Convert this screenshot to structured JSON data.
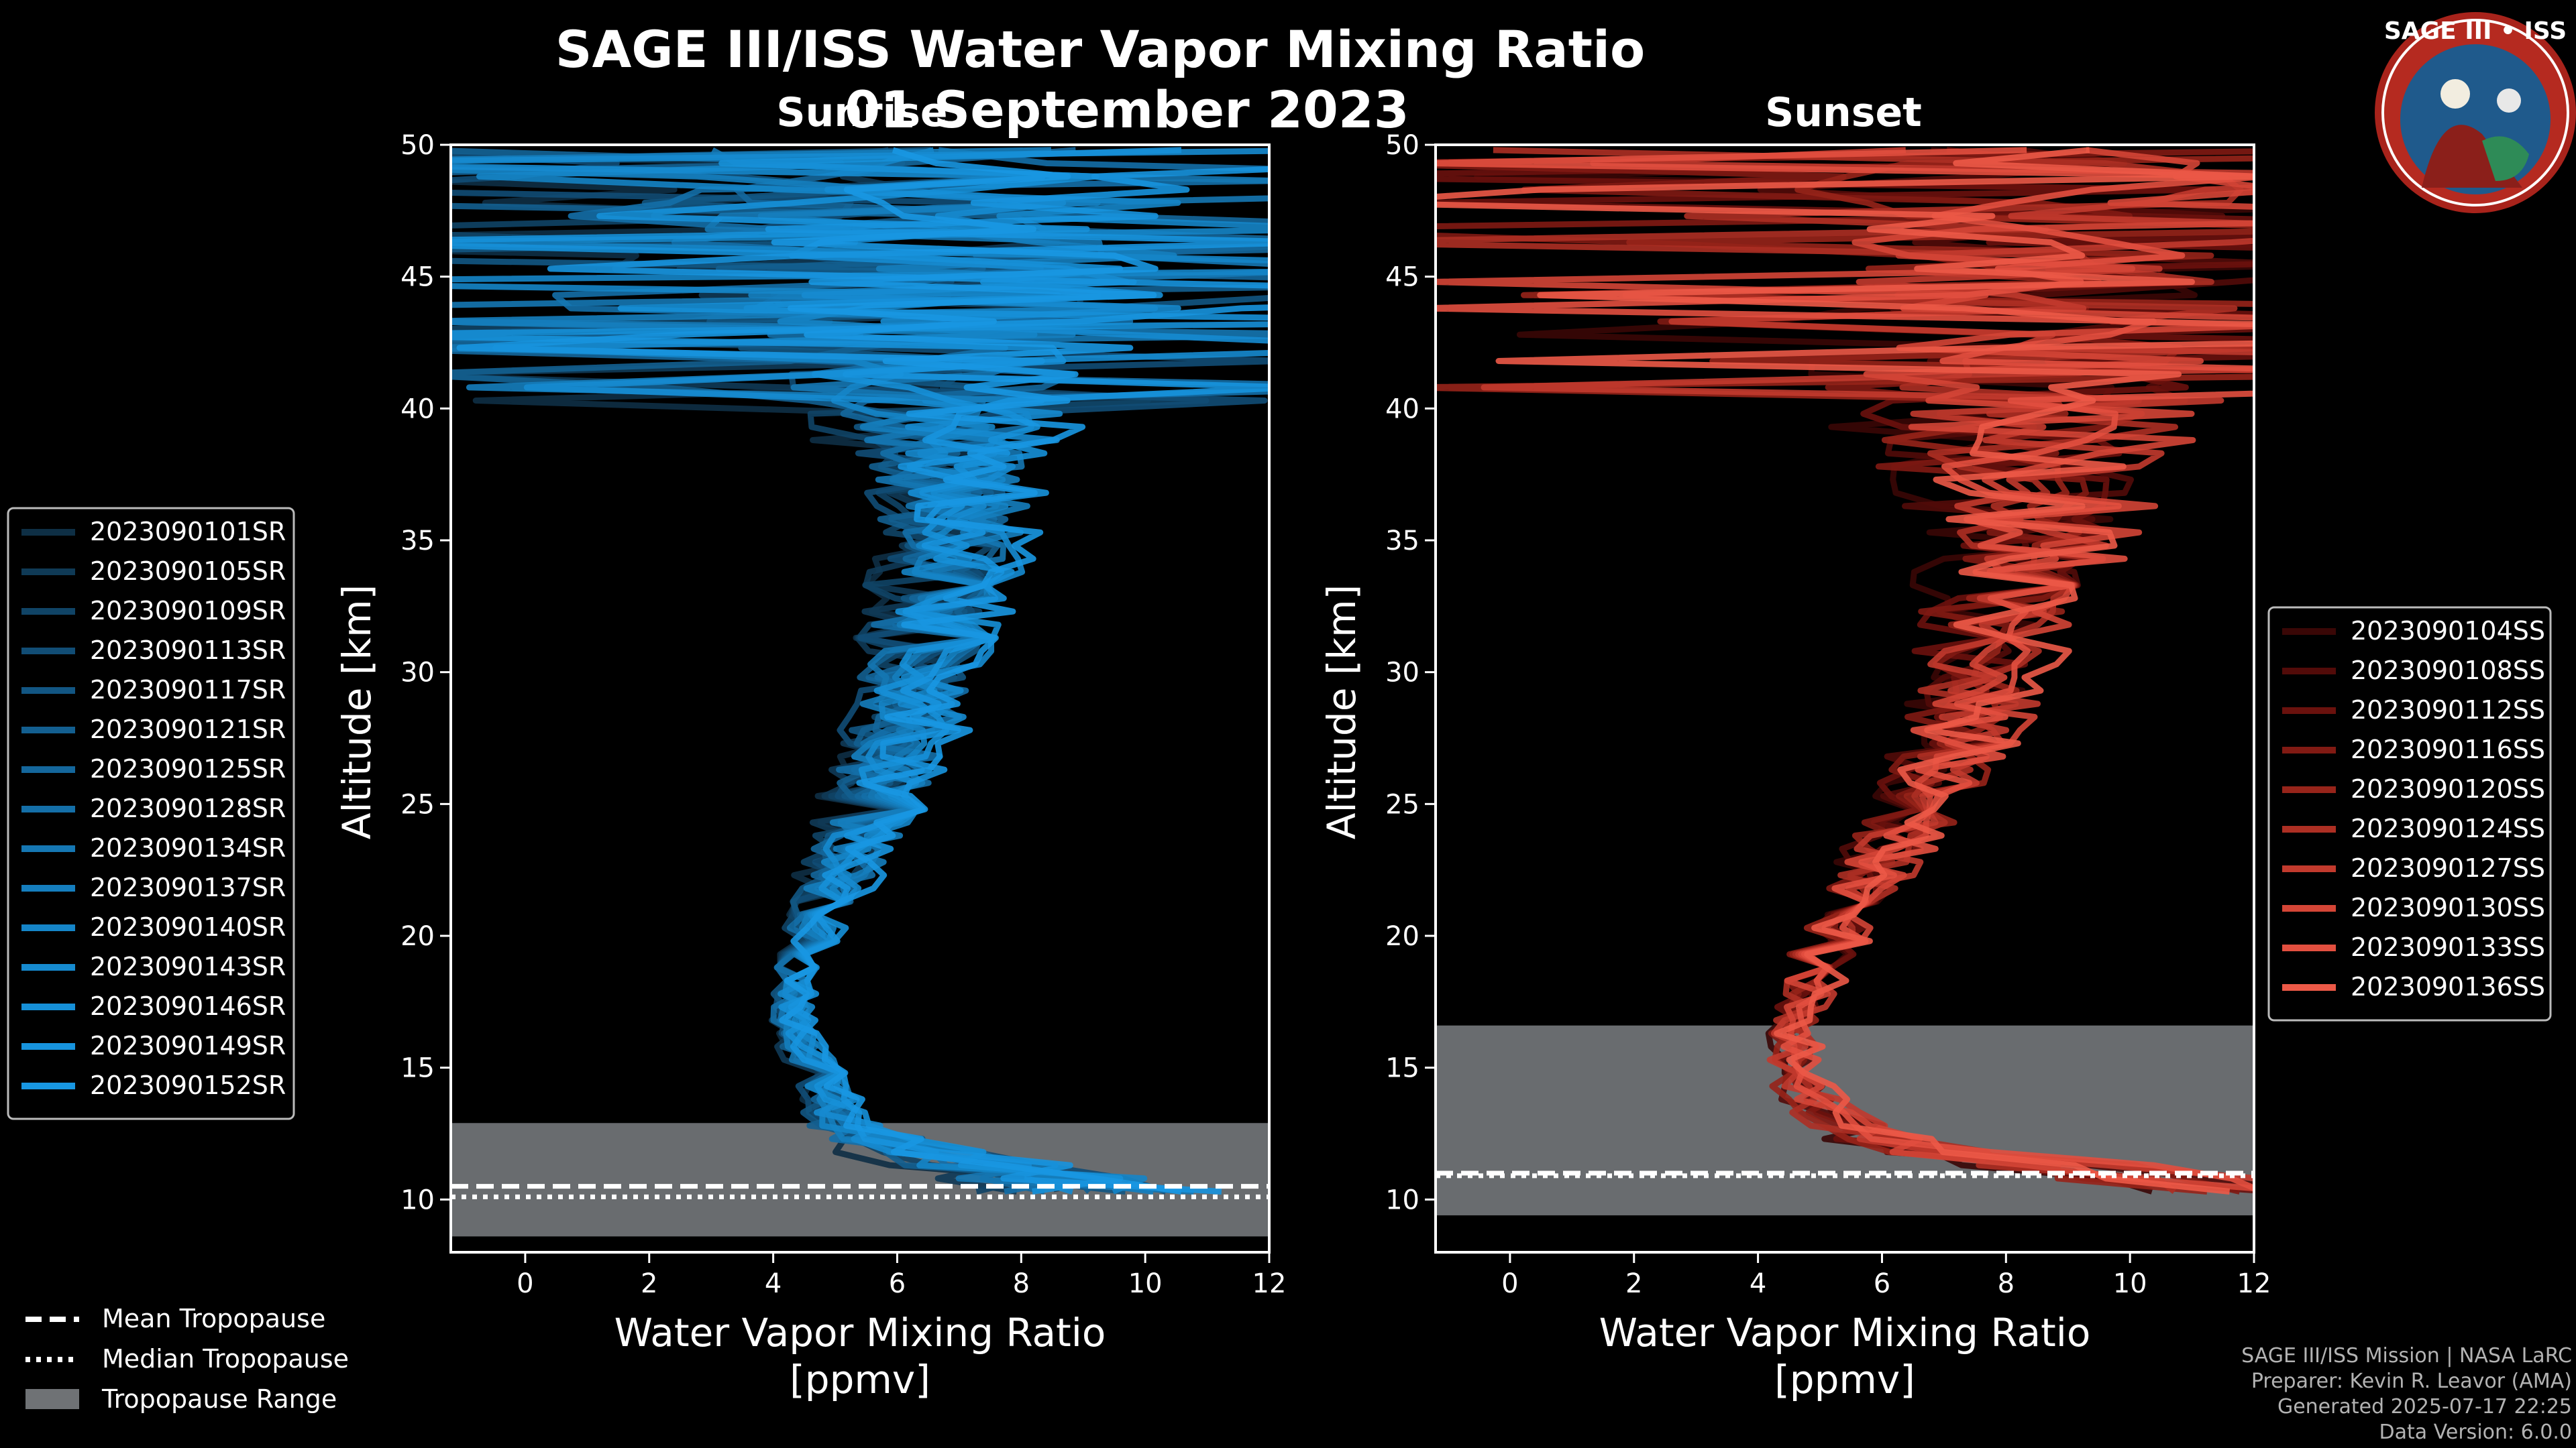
{
  "header": {
    "title": "SAGE III/ISS Water Vapor Mixing Ratio",
    "date": "01 September 2023",
    "left_label": "Sunrise",
    "right_label": "Sunset"
  },
  "logo": {
    "text": "SAGE III • ISS"
  },
  "chart_data": [
    {
      "type": "line",
      "panel": "Sunrise",
      "title": "Sunrise",
      "xlabel": "Water Vapor Mixing Ratio\n[ppmv]",
      "ylabel": "Altitude [km]",
      "xlim": [
        -1.2,
        12
      ],
      "ylim": [
        8,
        50
      ],
      "xticks": [
        0,
        2,
        4,
        6,
        8,
        10,
        12
      ],
      "yticks": [
        10,
        15,
        20,
        25,
        30,
        35,
        40,
        45,
        50
      ],
      "grid": false,
      "legend_position": "left",
      "profile_shape": {
        "altitude": [
          10,
          11,
          12,
          13,
          14,
          15,
          16,
          17,
          18,
          19,
          20,
          22,
          24,
          26,
          28,
          30,
          32,
          34,
          36,
          38,
          40,
          42,
          44,
          46,
          48,
          50
        ],
        "median_ppmv": [
          10.0,
          8.0,
          6.0,
          5.0,
          4.9,
          4.7,
          4.4,
          4.3,
          4.3,
          4.4,
          4.6,
          5.0,
          5.4,
          5.8,
          6.1,
          6.4,
          6.6,
          6.8,
          6.9,
          6.8,
          6.6,
          6.5,
          6.5,
          6.3,
          6.0,
          6.0
        ],
        "spread_ppmv": [
          3.0,
          2.5,
          1.5,
          0.7,
          0.6,
          0.6,
          0.5,
          0.5,
          0.5,
          0.5,
          0.6,
          0.8,
          1.0,
          1.2,
          1.3,
          1.4,
          1.5,
          1.6,
          1.7,
          2.0,
          3.0,
          5.0,
          6.0,
          6.0,
          6.0,
          6.0
        ]
      },
      "series": [
        {
          "name": "2023090101SR",
          "color": "#0e2f45"
        },
        {
          "name": "2023090105SR",
          "color": "#0f3a56"
        },
        {
          "name": "2023090109SR",
          "color": "#104466"
        },
        {
          "name": "2023090113SR",
          "color": "#114d75"
        },
        {
          "name": "2023090117SR",
          "color": "#125683"
        },
        {
          "name": "2023090121SR",
          "color": "#135f90"
        },
        {
          "name": "2023090125SR",
          "color": "#14679c"
        },
        {
          "name": "2023090128SR",
          "color": "#146fa8"
        },
        {
          "name": "2023090134SR",
          "color": "#1577b3"
        },
        {
          "name": "2023090137SR",
          "color": "#157ebe"
        },
        {
          "name": "2023090140SR",
          "color": "#1585c8"
        },
        {
          "name": "2023090143SR",
          "color": "#168bd0"
        },
        {
          "name": "2023090146SR",
          "color": "#1690d8"
        },
        {
          "name": "2023090149SR",
          "color": "#1794de"
        },
        {
          "name": "2023090152SR",
          "color": "#1897e2"
        }
      ],
      "tropopause": {
        "mean_km": 10.5,
        "median_km": 10.1,
        "range_km": [
          8.6,
          12.9
        ]
      },
      "legend2": [
        "Mean Tropopause",
        "Median Tropopause",
        "Tropopause Range"
      ]
    },
    {
      "type": "line",
      "panel": "Sunset",
      "title": "Sunset",
      "xlabel": "Water Vapor Mixing Ratio\n[ppmv]",
      "ylabel": "Altitude [km]",
      "xlim": [
        -1.2,
        12
      ],
      "ylim": [
        8,
        50
      ],
      "xticks": [
        0,
        2,
        4,
        6,
        8,
        10,
        12
      ],
      "yticks": [
        10,
        15,
        20,
        25,
        30,
        35,
        40,
        45,
        50
      ],
      "grid": false,
      "legend_position": "right",
      "profile_shape": {
        "altitude": [
          10,
          11,
          12,
          13,
          14,
          15,
          16,
          17,
          18,
          19,
          20,
          22,
          24,
          26,
          28,
          30,
          32,
          34,
          36,
          38,
          40,
          42,
          44,
          46,
          48,
          50
        ],
        "median_ppmv": [
          12.0,
          9.0,
          6.0,
          5.0,
          4.5,
          4.4,
          4.4,
          4.5,
          4.6,
          4.8,
          5.0,
          5.5,
          6.0,
          6.5,
          6.9,
          7.2,
          7.4,
          7.6,
          7.6,
          7.4,
          7.2,
          7.0,
          7.0,
          7.0,
          7.0,
          7.0
        ],
        "spread_ppmv": [
          2.0,
          3.0,
          1.5,
          1.0,
          0.8,
          0.7,
          0.6,
          0.6,
          0.7,
          0.8,
          0.9,
          1.0,
          1.2,
          1.4,
          1.5,
          1.6,
          1.8,
          2.2,
          2.8,
          3.5,
          4.5,
          5.5,
          6.0,
          6.0,
          6.0,
          6.0
        ]
      },
      "series": [
        {
          "name": "2023090104SS",
          "color": "#3a0706"
        },
        {
          "name": "2023090108SS",
          "color": "#520b09"
        },
        {
          "name": "2023090112SS",
          "color": "#6a110d"
        },
        {
          "name": "2023090116SS",
          "color": "#811a13"
        },
        {
          "name": "2023090120SS",
          "color": "#97241a"
        },
        {
          "name": "2023090124SS",
          "color": "#ad2f23"
        },
        {
          "name": "2023090127SS",
          "color": "#c23a2d"
        },
        {
          "name": "2023090130SS",
          "color": "#d44536"
        },
        {
          "name": "2023090133SS",
          "color": "#e24f3f"
        },
        {
          "name": "2023090136SS",
          "color": "#ec5947"
        }
      ],
      "tropopause": {
        "mean_km": 11.0,
        "median_km": 10.9,
        "range_km": [
          9.4,
          16.6
        ]
      },
      "legend2": []
    }
  ],
  "footer": {
    "line1": "SAGE III/ISS Mission | NASA LaRC",
    "line2": "Preparer: Kevin R. Leavor (AMA)",
    "line3": "Generated 2025-07-17 22:25",
    "line4": "Data Version: 6.0.0"
  }
}
